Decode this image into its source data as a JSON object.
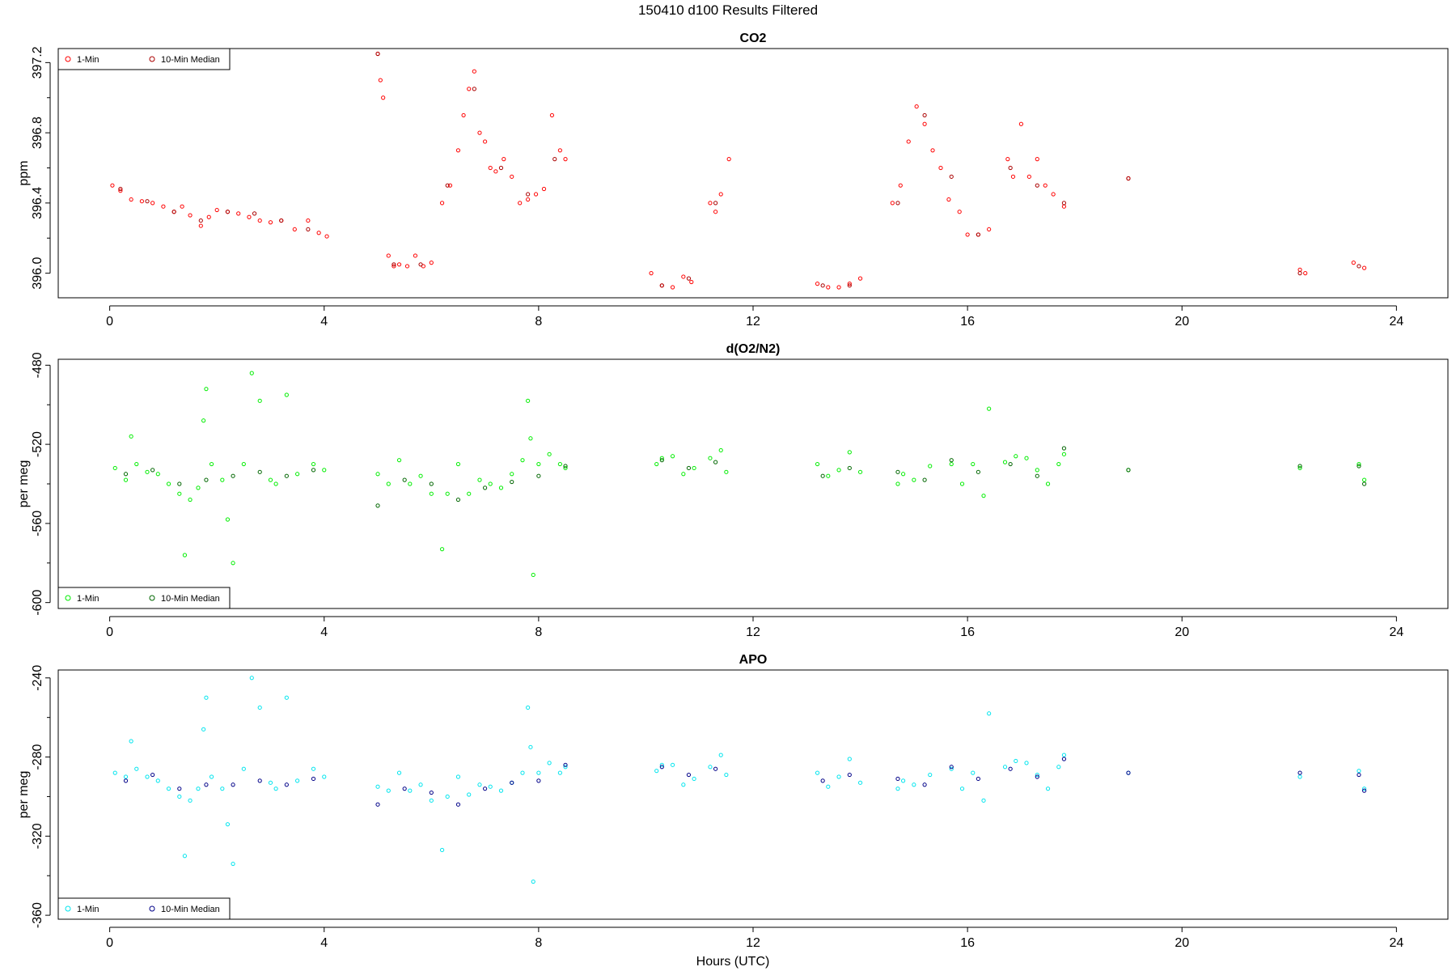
{
  "figure": {
    "title": "150410    d100    Results Filtered",
    "xlabel": "Hours (UTC)"
  },
  "chart_data": [
    {
      "type": "scatter",
      "id": "co2",
      "title": "CO2",
      "ylabel": "ppm",
      "xlabel": "Hours (UTC)",
      "xlim": [
        -0.96,
        24.96
      ],
      "ylim": [
        395.86,
        397.28
      ],
      "xticks": [
        0,
        4,
        8,
        12,
        16,
        20,
        24
      ],
      "yticks": [
        396.0,
        396.4,
        396.8,
        397.2
      ],
      "yminor": [
        396.2,
        396.6,
        397.0
      ],
      "ytick_labels": [
        "396.0",
        "396.4",
        "396.8",
        "397.2"
      ],
      "legend": {
        "position": "top-left",
        "entries": [
          "1-Min",
          "10-Min Median"
        ]
      },
      "colors": {
        "one_min": "#ff0000",
        "median": "#aa0000"
      },
      "series": [
        {
          "name": "1-Min",
          "x": [
            0.05,
            0.2,
            0.4,
            0.6,
            0.8,
            1.0,
            1.2,
            1.35,
            1.5,
            1.7,
            1.85,
            2.0,
            2.2,
            2.4,
            2.6,
            2.8,
            3.0,
            3.2,
            3.45,
            3.7,
            3.9,
            4.05,
            5.0,
            5.05,
            5.1,
            5.2,
            5.3,
            5.4,
            5.55,
            5.7,
            5.85,
            6.0,
            6.2,
            6.35,
            6.5,
            6.6,
            6.7,
            6.8,
            6.9,
            7.0,
            7.1,
            7.2,
            7.35,
            7.5,
            7.65,
            7.8,
            7.95,
            8.1,
            8.25,
            8.4,
            8.5,
            10.1,
            10.3,
            10.5,
            10.7,
            10.85,
            11.2,
            11.3,
            11.4,
            11.55,
            13.2,
            13.4,
            13.6,
            13.8,
            14.0,
            14.6,
            14.75,
            14.9,
            15.05,
            15.2,
            15.35,
            15.5,
            15.65,
            15.85,
            16.0,
            16.2,
            16.4,
            16.75,
            16.85,
            17.0,
            17.15,
            17.3,
            17.45,
            17.6,
            17.8,
            19.0,
            22.2,
            22.3,
            23.2,
            23.4
          ],
          "y": [
            396.5,
            396.47,
            396.42,
            396.41,
            396.4,
            396.38,
            396.35,
            396.38,
            396.33,
            396.27,
            396.32,
            396.36,
            396.35,
            396.34,
            396.32,
            396.3,
            396.29,
            396.3,
            396.25,
            396.3,
            396.23,
            396.21,
            397.25,
            397.1,
            397.0,
            396.1,
            396.04,
            396.05,
            396.04,
            396.1,
            396.04,
            396.06,
            396.4,
            396.5,
            396.7,
            396.9,
            397.05,
            397.15,
            396.8,
            396.75,
            396.6,
            396.58,
            396.65,
            396.55,
            396.4,
            396.42,
            396.45,
            396.48,
            396.9,
            396.7,
            396.65,
            396.0,
            395.93,
            395.92,
            395.98,
            395.95,
            396.4,
            396.35,
            396.45,
            396.65,
            395.94,
            395.92,
            395.92,
            395.94,
            395.97,
            396.4,
            396.5,
            396.75,
            396.95,
            396.85,
            396.7,
            396.6,
            396.42,
            396.35,
            396.22,
            396.22,
            396.25,
            396.65,
            396.55,
            396.85,
            396.55,
            396.65,
            396.5,
            396.45,
            396.38,
            396.54,
            396.02,
            396.0,
            396.06,
            396.03
          ]
        },
        {
          "name": "10-Min Median",
          "x": [
            0.2,
            0.7,
            1.2,
            1.7,
            2.2,
            2.7,
            3.2,
            3.7,
            5.0,
            5.3,
            5.8,
            6.3,
            6.8,
            7.3,
            7.8,
            8.3,
            10.3,
            10.8,
            11.3,
            13.3,
            13.8,
            14.7,
            15.2,
            15.7,
            16.2,
            16.8,
            17.3,
            17.8,
            19.0,
            22.2,
            23.3
          ],
          "y": [
            396.48,
            396.41,
            396.35,
            396.3,
            396.35,
            396.34,
            396.3,
            396.25,
            397.25,
            396.05,
            396.05,
            396.5,
            397.05,
            396.6,
            396.45,
            396.65,
            395.93,
            395.97,
            396.4,
            395.93,
            395.93,
            396.4,
            396.9,
            396.55,
            396.22,
            396.6,
            396.5,
            396.4,
            396.54,
            396.0,
            396.04
          ]
        }
      ]
    },
    {
      "type": "scatter",
      "id": "do2n2",
      "title": "d(O2/N2)",
      "ylabel": "per meg",
      "xlabel": "Hours (UTC)",
      "xlim": [
        -0.96,
        24.96
      ],
      "ylim": [
        -603,
        -477
      ],
      "xticks": [
        0,
        4,
        8,
        12,
        16,
        20,
        24
      ],
      "yticks": [
        -600,
        -560,
        -520,
        -480
      ],
      "yminor": [
        -580,
        -540,
        -500
      ],
      "ytick_labels": [
        "-600",
        "-560",
        "-520",
        "-480"
      ],
      "legend": {
        "position": "bottom-left",
        "entries": [
          "1-Min",
          "10-Min Median"
        ]
      },
      "colors": {
        "one_min": "#00ee00",
        "median": "#006600"
      },
      "series": [
        {
          "name": "1-Min",
          "x": [
            0.1,
            0.3,
            0.4,
            0.5,
            0.7,
            0.9,
            1.1,
            1.3,
            1.4,
            1.5,
            1.65,
            1.75,
            1.8,
            1.9,
            2.1,
            2.2,
            2.3,
            2.5,
            2.65,
            2.8,
            3.0,
            3.1,
            3.3,
            3.5,
            3.8,
            4.0,
            5.0,
            5.2,
            5.4,
            5.6,
            5.8,
            6.0,
            6.2,
            6.3,
            6.5,
            6.7,
            6.9,
            7.1,
            7.3,
            7.5,
            7.7,
            7.8,
            7.85,
            7.9,
            8.0,
            8.2,
            8.4,
            8.5,
            10.2,
            10.3,
            10.5,
            10.7,
            10.9,
            11.2,
            11.4,
            11.5,
            13.2,
            13.4,
            13.6,
            13.8,
            14.0,
            14.7,
            14.8,
            15.0,
            15.3,
            15.7,
            15.9,
            16.1,
            16.3,
            16.4,
            16.7,
            16.9,
            17.1,
            17.3,
            17.5,
            17.7,
            17.8,
            19.0,
            22.2,
            23.3,
            23.4
          ],
          "y": [
            -532,
            -538,
            -516,
            -530,
            -534,
            -535,
            -540,
            -545,
            -576,
            -548,
            -542,
            -508,
            -492,
            -530,
            -538,
            -558,
            -580,
            -530,
            -484,
            -498,
            -538,
            -540,
            -495,
            -535,
            -530,
            -533,
            -535,
            -540,
            -528,
            -540,
            -536,
            -545,
            -573,
            -545,
            -530,
            -545,
            -538,
            -540,
            -542,
            -535,
            -528,
            -498,
            -517,
            -586,
            -530,
            -525,
            -530,
            -532,
            -530,
            -527,
            -526,
            -535,
            -532,
            -527,
            -523,
            -534,
            -530,
            -536,
            -533,
            -524,
            -534,
            -540,
            -535,
            -538,
            -531,
            -530,
            -540,
            -530,
            -546,
            -502,
            -529,
            -526,
            -527,
            -533,
            -540,
            -530,
            -525,
            -533,
            -532,
            -530,
            -538
          ]
        },
        {
          "name": "10-Min Median",
          "x": [
            0.3,
            0.8,
            1.3,
            1.8,
            2.3,
            2.8,
            3.3,
            3.8,
            5.0,
            5.5,
            6.0,
            6.5,
            7.0,
            7.5,
            8.0,
            8.5,
            10.3,
            10.8,
            11.3,
            13.3,
            13.8,
            14.7,
            15.2,
            15.7,
            16.2,
            16.8,
            17.3,
            17.8,
            19.0,
            22.2,
            23.3,
            23.4
          ],
          "y": [
            -535,
            -533,
            -540,
            -538,
            -536,
            -534,
            -536,
            -533,
            -551,
            -538,
            -540,
            -548,
            -542,
            -539,
            -536,
            -531,
            -528,
            -532,
            -529,
            -536,
            -532,
            -534,
            -538,
            -528,
            -534,
            -530,
            -536,
            -522,
            -533,
            -531,
            -531,
            -540
          ]
        }
      ]
    },
    {
      "type": "scatter",
      "id": "apo",
      "title": "APO",
      "ylabel": "per meg",
      "xlabel": "Hours (UTC)",
      "xlim": [
        -0.96,
        24.96
      ],
      "ylim": [
        -362,
        -236
      ],
      "xticks": [
        0,
        4,
        8,
        12,
        16,
        20,
        24
      ],
      "yticks": [
        -360,
        -320,
        -280,
        -240
      ],
      "yminor": [
        -340,
        -300,
        -260
      ],
      "ytick_labels": [
        "-360",
        "-320",
        "-280",
        "-240"
      ],
      "legend": {
        "position": "bottom-left",
        "entries": [
          "1-Min",
          "10-Min Median"
        ]
      },
      "colors": {
        "one_min": "#00e5ee",
        "median": "#000088"
      },
      "series": [
        {
          "name": "1-Min",
          "x": [
            0.1,
            0.3,
            0.4,
            0.5,
            0.7,
            0.9,
            1.1,
            1.3,
            1.4,
            1.5,
            1.65,
            1.75,
            1.8,
            1.9,
            2.1,
            2.2,
            2.3,
            2.5,
            2.65,
            2.8,
            3.0,
            3.1,
            3.3,
            3.5,
            3.8,
            4.0,
            5.0,
            5.2,
            5.4,
            5.6,
            5.8,
            6.0,
            6.2,
            6.3,
            6.5,
            6.7,
            6.9,
            7.1,
            7.3,
            7.5,
            7.7,
            7.8,
            7.85,
            7.9,
            8.0,
            8.2,
            8.4,
            8.5,
            10.2,
            10.3,
            10.5,
            10.7,
            10.9,
            11.2,
            11.4,
            11.5,
            13.2,
            13.4,
            13.6,
            13.8,
            14.0,
            14.7,
            14.8,
            15.0,
            15.3,
            15.7,
            15.9,
            16.1,
            16.3,
            16.4,
            16.7,
            16.9,
            17.1,
            17.3,
            17.5,
            17.7,
            17.8,
            19.0,
            22.2,
            23.3,
            23.4
          ],
          "y": [
            -288,
            -290,
            -272,
            -286,
            -290,
            -292,
            -296,
            -300,
            -330,
            -302,
            -296,
            -266,
            -250,
            -290,
            -296,
            -314,
            -334,
            -286,
            -240,
            -255,
            -293,
            -296,
            -250,
            -292,
            -286,
            -290,
            -295,
            -297,
            -288,
            -297,
            -294,
            -302,
            -327,
            -300,
            -290,
            -299,
            -294,
            -295,
            -297,
            -293,
            -288,
            -255,
            -275,
            -343,
            -288,
            -283,
            -288,
            -285,
            -287,
            -284,
            -284,
            -294,
            -291,
            -285,
            -279,
            -289,
            -288,
            -295,
            -290,
            -281,
            -293,
            -296,
            -292,
            -294,
            -289,
            -286,
            -296,
            -288,
            -302,
            -258,
            -285,
            -282,
            -283,
            -289,
            -296,
            -285,
            -279,
            -288,
            -290,
            -287,
            -296
          ]
        },
        {
          "name": "10-Min Median",
          "x": [
            0.3,
            0.8,
            1.3,
            1.8,
            2.3,
            2.8,
            3.3,
            3.8,
            5.0,
            5.5,
            6.0,
            6.5,
            7.0,
            7.5,
            8.0,
            8.5,
            10.3,
            10.8,
            11.3,
            13.3,
            13.8,
            14.7,
            15.2,
            15.7,
            16.2,
            16.8,
            17.3,
            17.8,
            19.0,
            22.2,
            23.3,
            23.4
          ],
          "y": [
            -292,
            -289,
            -296,
            -294,
            -294,
            -292,
            -294,
            -291,
            -304,
            -296,
            -298,
            -304,
            -296,
            -293,
            -292,
            -284,
            -285,
            -289,
            -286,
            -292,
            -289,
            -291,
            -294,
            -285,
            -291,
            -286,
            -290,
            -281,
            -288,
            -288,
            -289,
            -297
          ]
        }
      ]
    }
  ]
}
